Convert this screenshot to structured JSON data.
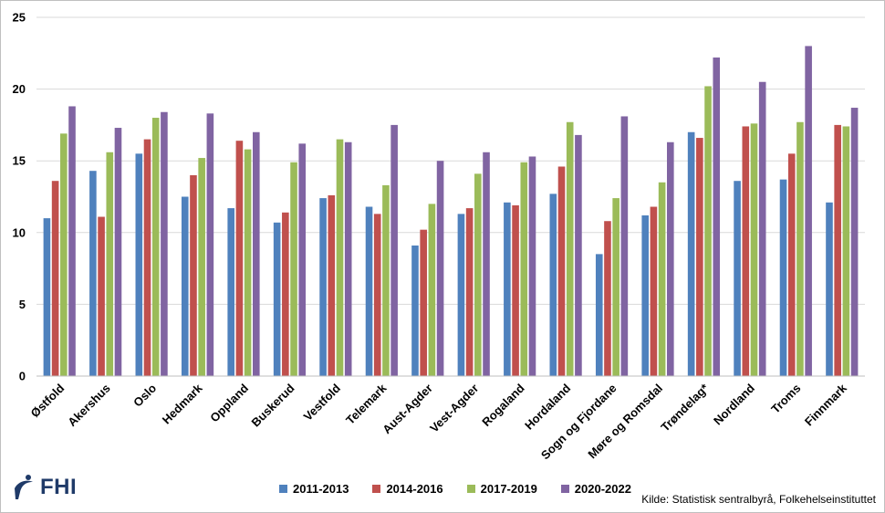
{
  "chart_data": {
    "type": "bar",
    "categories": [
      "Østfold",
      "Akershus",
      "Oslo",
      "Hedmark",
      "Oppland",
      "Buskerud",
      "Vestfold",
      "Telemark",
      "Aust-Agder",
      "Vest-Agder",
      "Rogaland",
      "Hordaland",
      "Sogn og Fjordane",
      "Møre og Romsdal",
      "Trøndelag*",
      "Nordland",
      "Troms",
      "Finnmark"
    ],
    "series": [
      {
        "name": "2011-2013",
        "color": "#4f81bd",
        "values": [
          11.0,
          14.3,
          15.5,
          12.5,
          11.7,
          10.7,
          12.4,
          11.8,
          9.1,
          11.3,
          12.1,
          12.7,
          8.5,
          11.2,
          17.0,
          13.6,
          13.7,
          12.1
        ]
      },
      {
        "name": "2014-2016",
        "color": "#c0504d",
        "values": [
          13.6,
          11.1,
          16.5,
          14.0,
          16.4,
          11.4,
          12.6,
          11.3,
          10.2,
          11.7,
          11.9,
          14.6,
          10.8,
          11.8,
          16.6,
          17.4,
          15.5,
          17.5
        ]
      },
      {
        "name": "2017-2019",
        "color": "#9bbb59",
        "values": [
          16.9,
          15.6,
          18.0,
          15.2,
          15.8,
          14.9,
          16.5,
          13.3,
          12.0,
          14.1,
          14.9,
          17.7,
          12.4,
          13.5,
          20.2,
          17.6,
          17.7,
          17.4
        ]
      },
      {
        "name": "2020-2022",
        "color": "#8064a2",
        "values": [
          18.8,
          17.3,
          18.4,
          18.3,
          17.0,
          16.2,
          16.3,
          17.5,
          15.0,
          15.6,
          15.3,
          16.8,
          18.1,
          16.3,
          22.2,
          20.5,
          23.0,
          18.7
        ]
      }
    ],
    "ylim": [
      0,
      25
    ],
    "yticks": [
      0,
      5,
      10,
      15,
      20,
      25
    ],
    "grid": true,
    "legend_position": "bottom-center"
  },
  "legend": {
    "items": [
      {
        "label": "2011-2013",
        "color": "#4f81bd"
      },
      {
        "label": "2014-2016",
        "color": "#c0504d"
      },
      {
        "label": "2017-2019",
        "color": "#9bbb59"
      },
      {
        "label": "2020-2022",
        "color": "#8064a2"
      }
    ]
  },
  "source": "Kilde: Statistisk sentralbyrå, Folkehelseinstituttet",
  "logo": {
    "text": "FHI",
    "color": "#1f3a68"
  }
}
